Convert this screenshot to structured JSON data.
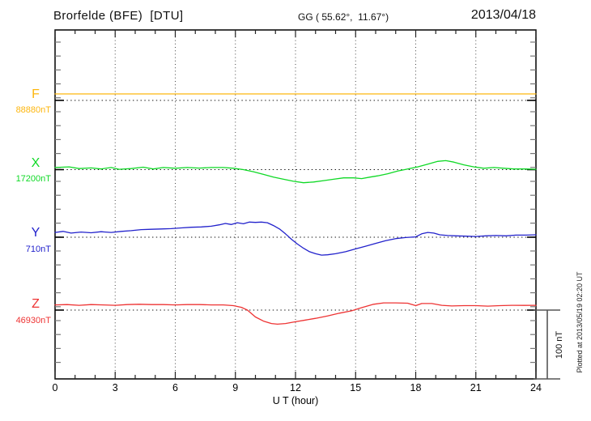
{
  "header": {
    "title": "Brorfelde (BFE)  [DTU]",
    "coords": "GG ( 55.62°,  11.67°)",
    "date": "2013/04/18"
  },
  "footer": {
    "xlabel": "U T (hour)"
  },
  "plot_note": "Plotted at 2013/05/19 02:20 UT",
  "chart_data": {
    "type": "line",
    "title": "Brorfelde (BFE) [DTU] magnetogram, 2013/04/18",
    "xlabel": "U T (hour)",
    "x_range": [
      0,
      24
    ],
    "x_ticks": [
      0,
      3,
      6,
      9,
      12,
      15,
      18,
      21,
      24
    ],
    "x_minor_tick_interval_hours": 1,
    "y_units": "nT (offset from each component baseline)",
    "grid": "dotted vertical lines every 3 h; dotted horizontal baseline per component",
    "legend_position": "left margin",
    "scale_bar": {
      "label": "100 nT",
      "nT": 100
    },
    "series": [
      {
        "name": "F",
        "label": "F",
        "baseline_label": "88880nT",
        "baseline_value_nT": 88880,
        "color": "#fdb60e",
        "points": [
          [
            0,
            9.4
          ],
          [
            6,
            9.4
          ],
          [
            12,
            9.4
          ],
          [
            18,
            9.4
          ],
          [
            24,
            9.4
          ]
        ]
      },
      {
        "name": "X",
        "label": "X",
        "baseline_label": "17200nT",
        "baseline_value_nT": 17200,
        "color": "#0fd926",
        "points": [
          [
            0,
            3
          ],
          [
            0.7,
            4
          ],
          [
            1.2,
            1.5
          ],
          [
            1.8,
            2.5
          ],
          [
            2.3,
            1
          ],
          [
            2.8,
            3
          ],
          [
            3.2,
            0.5
          ],
          [
            3.8,
            1.5
          ],
          [
            4.4,
            3.5
          ],
          [
            4.9,
            1
          ],
          [
            5.4,
            3
          ],
          [
            6,
            2
          ],
          [
            6.6,
            3
          ],
          [
            7.2,
            2.2
          ],
          [
            7.8,
            3
          ],
          [
            8.4,
            3
          ],
          [
            8.9,
            2
          ],
          [
            9.4,
            0
          ],
          [
            9.9,
            -3
          ],
          [
            10.4,
            -7
          ],
          [
            10.9,
            -11
          ],
          [
            11.4,
            -14
          ],
          [
            11.9,
            -17
          ],
          [
            12.4,
            -19
          ],
          [
            12.9,
            -18
          ],
          [
            13.4,
            -16
          ],
          [
            13.9,
            -14
          ],
          [
            14.4,
            -12
          ],
          [
            14.9,
            -12
          ],
          [
            15.3,
            -13
          ],
          [
            15.7,
            -11
          ],
          [
            16.1,
            -9
          ],
          [
            16.6,
            -6
          ],
          [
            17.1,
            -2
          ],
          [
            17.6,
            1
          ],
          [
            18.1,
            4
          ],
          [
            18.6,
            8
          ],
          [
            19.1,
            12
          ],
          [
            19.5,
            13
          ],
          [
            19.9,
            11
          ],
          [
            20.4,
            7
          ],
          [
            20.9,
            4
          ],
          [
            21.4,
            2
          ],
          [
            21.9,
            3
          ],
          [
            22.4,
            2
          ],
          [
            22.9,
            1
          ],
          [
            23.5,
            1
          ],
          [
            24,
            0.5
          ]
        ]
      },
      {
        "name": "Y",
        "label": "Y",
        "baseline_label": "710nT",
        "baseline_value_nT": 710,
        "color": "#2222cc",
        "points": [
          [
            0,
            7
          ],
          [
            0.4,
            8.5
          ],
          [
            0.8,
            6
          ],
          [
            1.3,
            7.5
          ],
          [
            1.8,
            6.5
          ],
          [
            2.3,
            8
          ],
          [
            2.8,
            7
          ],
          [
            3.3,
            8.5
          ],
          [
            3.8,
            9.5
          ],
          [
            4.3,
            11
          ],
          [
            4.8,
            11.5
          ],
          [
            5.3,
            12
          ],
          [
            5.8,
            12.5
          ],
          [
            6.3,
            13.5
          ],
          [
            6.8,
            14.5
          ],
          [
            7.3,
            15
          ],
          [
            7.8,
            16
          ],
          [
            8.2,
            18
          ],
          [
            8.5,
            20
          ],
          [
            8.8,
            18.5
          ],
          [
            9.1,
            21
          ],
          [
            9.4,
            19.5
          ],
          [
            9.7,
            22
          ],
          [
            10,
            21.5
          ],
          [
            10.3,
            22
          ],
          [
            10.6,
            21
          ],
          [
            10.9,
            17
          ],
          [
            11.2,
            12
          ],
          [
            11.5,
            5
          ],
          [
            11.8,
            -3
          ],
          [
            12.1,
            -10
          ],
          [
            12.4,
            -16
          ],
          [
            12.7,
            -21
          ],
          [
            13,
            -24
          ],
          [
            13.3,
            -26
          ],
          [
            13.6,
            -25.5
          ],
          [
            14,
            -24
          ],
          [
            14.5,
            -21
          ],
          [
            15,
            -17
          ],
          [
            15.5,
            -13
          ],
          [
            16,
            -9
          ],
          [
            16.5,
            -5
          ],
          [
            17,
            -2
          ],
          [
            17.5,
            -0.5
          ],
          [
            18,
            0.5
          ],
          [
            18.3,
            5
          ],
          [
            18.6,
            7
          ],
          [
            18.9,
            6
          ],
          [
            19.2,
            3.5
          ],
          [
            19.6,
            2.5
          ],
          [
            20,
            2
          ],
          [
            20.5,
            1.5
          ],
          [
            21,
            1
          ],
          [
            21.5,
            2
          ],
          [
            22,
            2.5
          ],
          [
            22.5,
            2
          ],
          [
            23,
            3
          ],
          [
            23.5,
            3
          ],
          [
            24,
            3.5
          ]
        ]
      },
      {
        "name": "Z",
        "label": "Z",
        "baseline_label": "46930nT",
        "baseline_value_nT": 46930,
        "color": "#ee3333",
        "points": [
          [
            0,
            7.5
          ],
          [
            0.6,
            8
          ],
          [
            1.2,
            7
          ],
          [
            1.8,
            8
          ],
          [
            2.4,
            7.5
          ],
          [
            3,
            7
          ],
          [
            3.6,
            8
          ],
          [
            4.2,
            8.5
          ],
          [
            4.8,
            8
          ],
          [
            5.4,
            8
          ],
          [
            6,
            7.5
          ],
          [
            6.6,
            8
          ],
          [
            7.2,
            8
          ],
          [
            7.8,
            7.5
          ],
          [
            8.4,
            7.5
          ],
          [
            8.9,
            6.5
          ],
          [
            9.3,
            4
          ],
          [
            9.6,
            0
          ],
          [
            10,
            -10
          ],
          [
            10.4,
            -16
          ],
          [
            10.8,
            -19.5
          ],
          [
            11.1,
            -20.5
          ],
          [
            11.5,
            -19.5
          ],
          [
            12,
            -17
          ],
          [
            12.5,
            -14.5
          ],
          [
            13,
            -12
          ],
          [
            13.6,
            -8.5
          ],
          [
            14.2,
            -4.5
          ],
          [
            14.8,
            -1
          ],
          [
            15.3,
            3.5
          ],
          [
            15.9,
            8.5
          ],
          [
            16.4,
            10.5
          ],
          [
            17,
            10.5
          ],
          [
            17.6,
            10
          ],
          [
            18,
            6.5
          ],
          [
            18.3,
            9.5
          ],
          [
            18.8,
            9.5
          ],
          [
            19.3,
            7
          ],
          [
            19.8,
            6
          ],
          [
            20.4,
            6.5
          ],
          [
            21,
            6.5
          ],
          [
            21.6,
            5.8
          ],
          [
            22.2,
            6.5
          ],
          [
            22.8,
            7
          ],
          [
            23.4,
            6.8
          ],
          [
            24,
            7
          ]
        ]
      }
    ]
  }
}
